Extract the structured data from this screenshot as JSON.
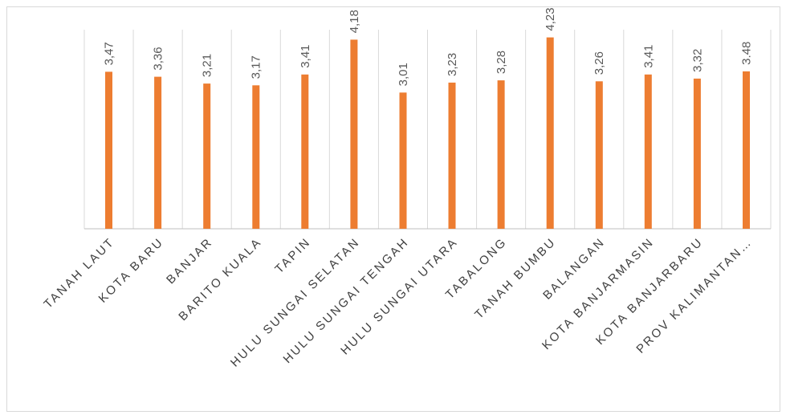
{
  "chart_data": {
    "type": "bar",
    "title": "",
    "xlabel": "",
    "ylabel": "",
    "ylim": [
      0,
      4.4
    ],
    "grid": "vertical category separators",
    "legend": "none",
    "bar_color": "#ed7d31",
    "categories": [
      "TANAH LAUT",
      "KOTA BARU",
      "BANJAR",
      "BARITO KUALA",
      "TAPIN",
      "HULU SUNGAI SELATAN",
      "HULU SUNGAI TENGAH",
      "HULU SUNGAI UTARA",
      "TABALONG",
      "TANAH BUMBU",
      "BALANGAN",
      "KOTA BANJARMASIN",
      "KOTA BANJARBARU",
      "PROV KALIMANTAN…"
    ],
    "values": [
      3.47,
      3.36,
      3.21,
      3.17,
      3.41,
      4.18,
      3.01,
      3.23,
      3.28,
      4.23,
      3.26,
      3.41,
      3.32,
      3.48
    ],
    "data_labels": [
      "3,47",
      "3,36",
      "3,21",
      "3,17",
      "3,41",
      "4,18",
      "3,01",
      "3,23",
      "3,28",
      "4,23",
      "3,26",
      "3,41",
      "3,32",
      "3.48"
    ]
  }
}
